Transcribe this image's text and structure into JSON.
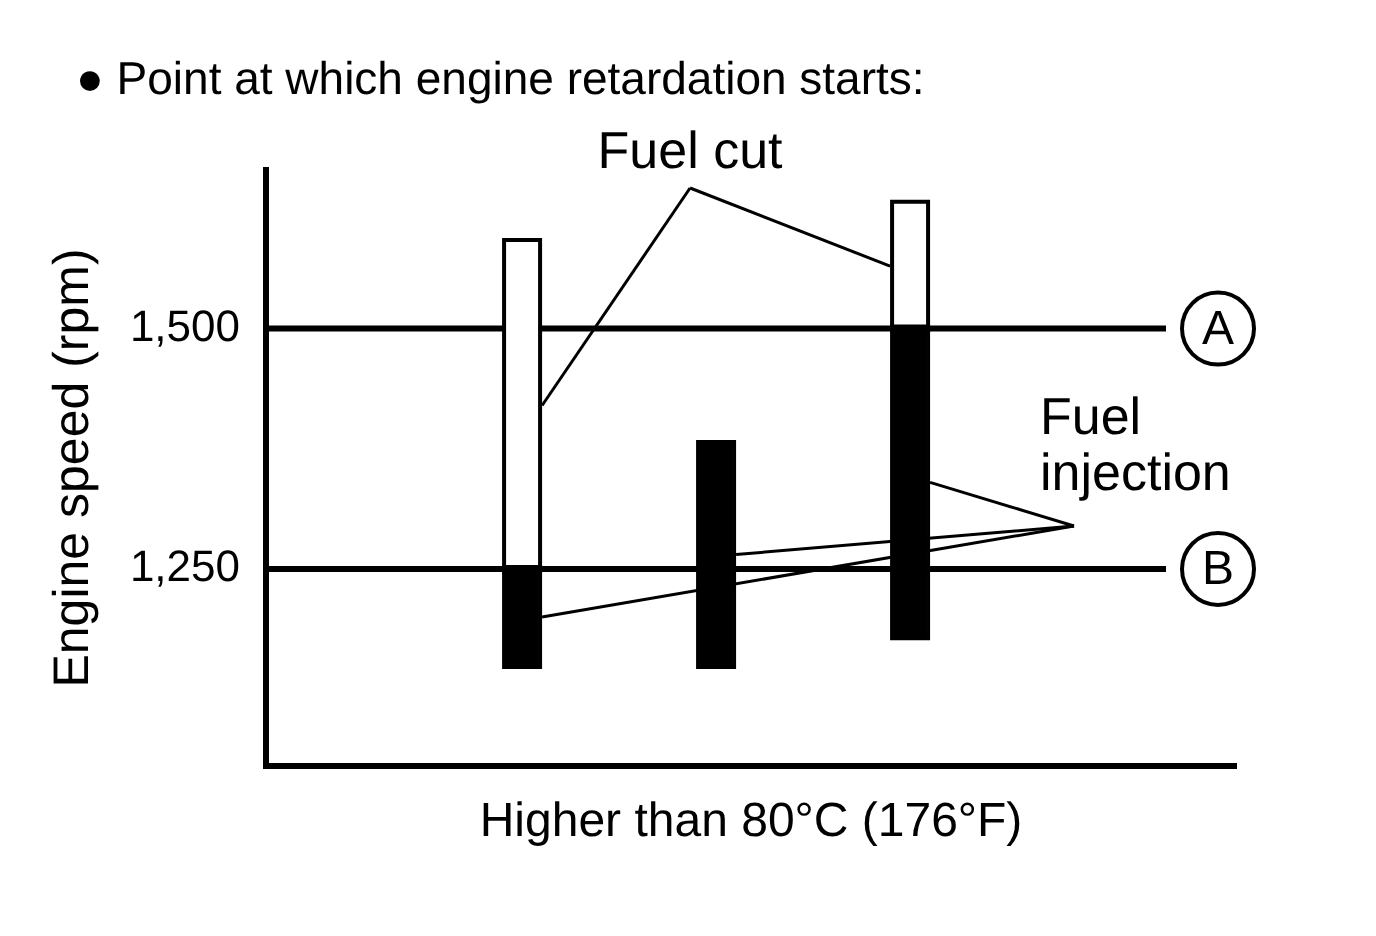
{
  "chart_data": {
    "type": "bar",
    "title": "● Point at which engine retardation starts:",
    "xlabel": "Higher than 80°C (176°F)",
    "ylabel": "Engine speed (rpm)",
    "categories": [
      null,
      null,
      null
    ],
    "series": [
      {
        "name": "Fuel injection",
        "color": "#000000",
        "base": [
          1150,
          1150,
          1180
        ],
        "values": [
          100,
          230,
          320
        ]
      },
      {
        "name": "Fuel cut",
        "color": "#ffffff",
        "base": [
          1250,
          null,
          1500
        ],
        "values": [
          340,
          null,
          130
        ]
      }
    ],
    "ylim": [
      1045,
      1665
    ],
    "yticks": [
      {
        "value": 1500,
        "label": "1,500"
      },
      {
        "value": 1250,
        "label": "1,250"
      }
    ],
    "ref_lines": [
      {
        "axis": "y",
        "value": 1500,
        "label": "A"
      },
      {
        "axis": "y",
        "value": 1250,
        "label": "B"
      }
    ]
  }
}
